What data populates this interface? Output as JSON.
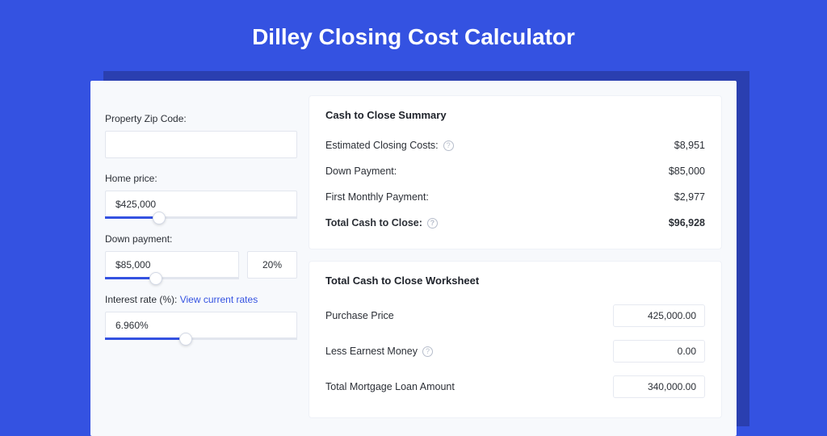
{
  "colors": {
    "page_bg": "#3452e1",
    "shadow_card": "#2a3fb0",
    "card_bg": "#f7f9fc",
    "panel_bg": "#ffffff",
    "border": "#e2e6ee",
    "text": "#2b2f36",
    "accent": "#3452e1",
    "muted_icon": "#b6bdcb"
  },
  "title": "Dilley Closing Cost Calculator",
  "inputs": {
    "zip": {
      "label": "Property Zip Code:",
      "value": ""
    },
    "home_price": {
      "label": "Home price:",
      "value": "$425,000",
      "slider_fill_pct": 28,
      "thumb_pct": 28
    },
    "down_payment": {
      "label": "Down payment:",
      "value": "$85,000",
      "pct_value": "20%",
      "slider_fill_pct": 38,
      "thumb_pct": 38
    },
    "interest": {
      "label_prefix": "Interest rate (%): ",
      "link_text": "View current rates",
      "value": "6.960%",
      "slider_fill_pct": 42,
      "thumb_pct": 42
    }
  },
  "summary": {
    "title": "Cash to Close Summary",
    "rows": [
      {
        "label": "Estimated Closing Costs:",
        "value": "$8,951",
        "help": true,
        "bold": false
      },
      {
        "label": "Down Payment:",
        "value": "$85,000",
        "help": false,
        "bold": false
      },
      {
        "label": "First Monthly Payment:",
        "value": "$2,977",
        "help": false,
        "bold": false
      },
      {
        "label": "Total Cash to Close:",
        "value": "$96,928",
        "help": true,
        "bold": true
      }
    ]
  },
  "worksheet": {
    "title": "Total Cash to Close Worksheet",
    "rows": [
      {
        "label": "Purchase Price",
        "value": "425,000.00",
        "help": false
      },
      {
        "label": "Less Earnest Money",
        "value": "0.00",
        "help": true
      },
      {
        "label": "Total Mortgage Loan Amount",
        "value": "340,000.00",
        "help": false
      }
    ]
  }
}
